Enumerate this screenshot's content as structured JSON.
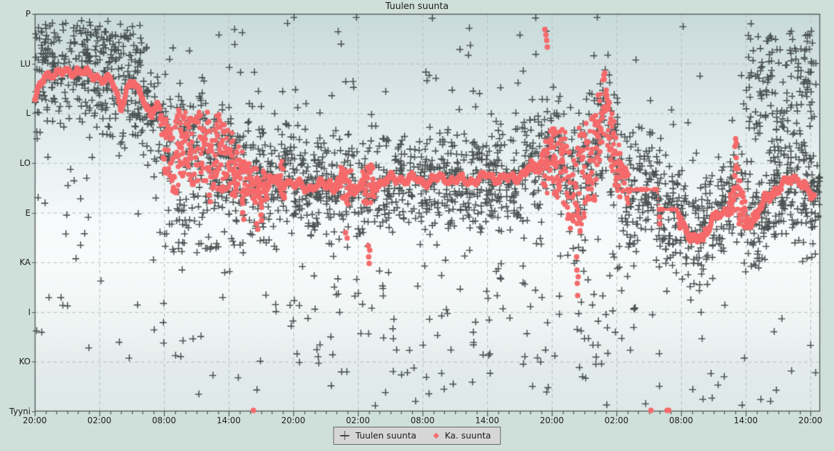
{
  "window_title": "Tuulen suunta",
  "colors": {
    "page_bg": "#cfdfd9",
    "plot_bg_top": "#c8dadb",
    "plot_bg_mid": "#f9fbfb",
    "plot_bg_bottom": "#dde8e7",
    "grid": "#b5bcbc",
    "axis": "#4a5050",
    "text": "#1b1b1b",
    "marker_gray": "#3e4444",
    "marker_red": "#f56a6b",
    "legend_bg": "#d6d6d6",
    "legend_border": "#636363"
  },
  "chart_data": {
    "type": "scatter",
    "title": "Tuulen suunta",
    "x_axis": {
      "tick_labels": [
        "20:00",
        "02:00",
        "08:00",
        "14:00",
        "20:00",
        "02:00",
        "08:00",
        "14:00",
        "20:00",
        "02:00",
        "08:00",
        "14:00",
        "20:00"
      ],
      "hours_span": 72,
      "major_tick_hours": 6,
      "minor_tick_hours": 1,
      "grid": "dashed"
    },
    "y_axis": {
      "categories_top_to_bottom": [
        "P",
        "LU",
        "L",
        "LO",
        "E",
        "KA",
        "I",
        "KO",
        "Tyyni"
      ],
      "degrees_top_to_bottom": [
        360,
        315,
        270,
        225,
        180,
        135,
        90,
        45,
        0
      ],
      "grid": "dashed"
    },
    "legend": [
      {
        "label": "Tuulen suunta",
        "marker": "plus",
        "color": "#3e4444"
      },
      {
        "label": "Ka. suunta",
        "marker": "diamond",
        "color": "#f56a6b"
      }
    ],
    "series": {
      "average_keyframes_t_deg_redspread_grayspread": [
        [
          0,
          281,
          6,
          40
        ],
        [
          0.7,
          299,
          6,
          40
        ],
        [
          1.5,
          307,
          5,
          40
        ],
        [
          3,
          306,
          5,
          42
        ],
        [
          4,
          310,
          5,
          42
        ],
        [
          5,
          304,
          5,
          42
        ],
        [
          6,
          303,
          5,
          44
        ],
        [
          7,
          299,
          5,
          44
        ],
        [
          7.5,
          291,
          6,
          44
        ],
        [
          8,
          276,
          7,
          44
        ],
        [
          8.5,
          291,
          6,
          44
        ],
        [
          9,
          297,
          6,
          44
        ],
        [
          10,
          287,
          7,
          46
        ],
        [
          10.8,
          268,
          9,
          46
        ],
        [
          11.4,
          277,
          10,
          46
        ],
        [
          12,
          243,
          24,
          48
        ],
        [
          13,
          229,
          36,
          50
        ],
        [
          14,
          244,
          32,
          50
        ],
        [
          15,
          237,
          30,
          48
        ],
        [
          16,
          241,
          34,
          48
        ],
        [
          17,
          234,
          36,
          48
        ],
        [
          18,
          226,
          30,
          46
        ],
        [
          19,
          216,
          28,
          46
        ],
        [
          20,
          207,
          14,
          44
        ],
        [
          21,
          203,
          20,
          44
        ],
        [
          22,
          207,
          10,
          42
        ],
        [
          23,
          213,
          16,
          42
        ],
        [
          24,
          205,
          6,
          42
        ],
        [
          26,
          203,
          6,
          42
        ],
        [
          28,
          207,
          12,
          42
        ],
        [
          29,
          202,
          18,
          42
        ],
        [
          30,
          205,
          8,
          44
        ],
        [
          31,
          203,
          22,
          44
        ],
        [
          32,
          208,
          7,
          42
        ],
        [
          34,
          211,
          7,
          40
        ],
        [
          36,
          209,
          6,
          40
        ],
        [
          38,
          211,
          6,
          40
        ],
        [
          40,
          208,
          6,
          40
        ],
        [
          42,
          213,
          6,
          40
        ],
        [
          44,
          210,
          7,
          42
        ],
        [
          46,
          219,
          9,
          44
        ],
        [
          47,
          223,
          13,
          48
        ],
        [
          48,
          229,
          36,
          56
        ],
        [
          49,
          226,
          32,
          56
        ],
        [
          50,
          198,
          52,
          60
        ],
        [
          51,
          216,
          48,
          60
        ],
        [
          52,
          235,
          44,
          58
        ],
        [
          53,
          280,
          28,
          56
        ],
        [
          54,
          223,
          28,
          52
        ],
        [
          55,
          203,
          18,
          48
        ],
        [
          55.4,
          201,
          2,
          46
        ],
        [
          57.8,
          201,
          2,
          44
        ],
        [
          57.95,
          183,
          2,
          44
        ],
        [
          59.75,
          183,
          2,
          44
        ],
        [
          60.1,
          172,
          10,
          44
        ],
        [
          61,
          153,
          9,
          44
        ],
        [
          62,
          159,
          11,
          44
        ],
        [
          63,
          175,
          9,
          44
        ],
        [
          64,
          178,
          9,
          46
        ],
        [
          64.9,
          196,
          20,
          46
        ],
        [
          65.1,
          204,
          26,
          46
        ],
        [
          65.5,
          186,
          22,
          46
        ],
        [
          66,
          171,
          14,
          46
        ],
        [
          67,
          178,
          9,
          46
        ],
        [
          68,
          194,
          11,
          46
        ],
        [
          69,
          203,
          9,
          46
        ],
        [
          70,
          208,
          7,
          46
        ],
        [
          70.9,
          212,
          7,
          46
        ],
        [
          72,
          196,
          9,
          44
        ],
        [
          72.4,
          192,
          9,
          44
        ]
      ],
      "average_outliers_t_deg": [
        [
          47.35,
          346
        ],
        [
          47.45,
          341
        ],
        [
          47.52,
          336
        ],
        [
          47.58,
          330
        ],
        [
          50.3,
          140
        ],
        [
          50.33,
          128
        ],
        [
          50.36,
          116
        ],
        [
          50.4,
          105
        ],
        [
          50.45,
          122
        ],
        [
          30.95,
          150
        ],
        [
          31,
          140
        ],
        [
          31.05,
          134
        ],
        [
          31.1,
          146
        ],
        [
          28.85,
          162
        ],
        [
          29,
          157
        ],
        [
          21,
          178
        ],
        [
          21.06,
          173
        ],
        [
          19.3,
          180
        ],
        [
          19.4,
          174
        ],
        [
          20.6,
          170
        ],
        [
          20.7,
          165
        ],
        [
          16.2,
          196
        ],
        [
          16.3,
          190
        ],
        [
          65,
          240
        ],
        [
          65.06,
          247
        ],
        [
          65.12,
          243
        ],
        [
          58,
          176
        ],
        [
          58.02,
          170
        ],
        [
          59.82,
          176
        ],
        [
          59.86,
          170
        ],
        [
          59.9,
          166
        ]
      ],
      "calm_points_t_deg": [
        [
          20.3,
          1
        ],
        [
          57.2,
          1
        ],
        [
          58.7,
          1
        ],
        [
          58.85,
          1
        ]
      ]
    },
    "generation": {
      "seed": 9,
      "gray_count": 2600,
      "uniform_outlier_fraction": 0.12,
      "gray_patches": [
        {
          "t": [
            0,
            10
          ],
          "deg": [
            315,
            352
          ],
          "count": 100
        },
        {
          "t": [
            66,
            72.6
          ],
          "deg": [
            252,
            345
          ],
          "count": 140
        },
        {
          "t": [
            12,
            20
          ],
          "deg": [
            140,
            200
          ],
          "count": 60
        },
        {
          "t": [
            24,
            44
          ],
          "deg": [
            30,
            150
          ],
          "count": 55
        },
        {
          "t": [
            44,
            56
          ],
          "deg": [
            40,
            160
          ],
          "count": 50
        },
        {
          "t": [
            14,
            70
          ],
          "deg": [
            3,
            28
          ],
          "count": 24
        }
      ],
      "red_step_hours": 0.045
    }
  }
}
